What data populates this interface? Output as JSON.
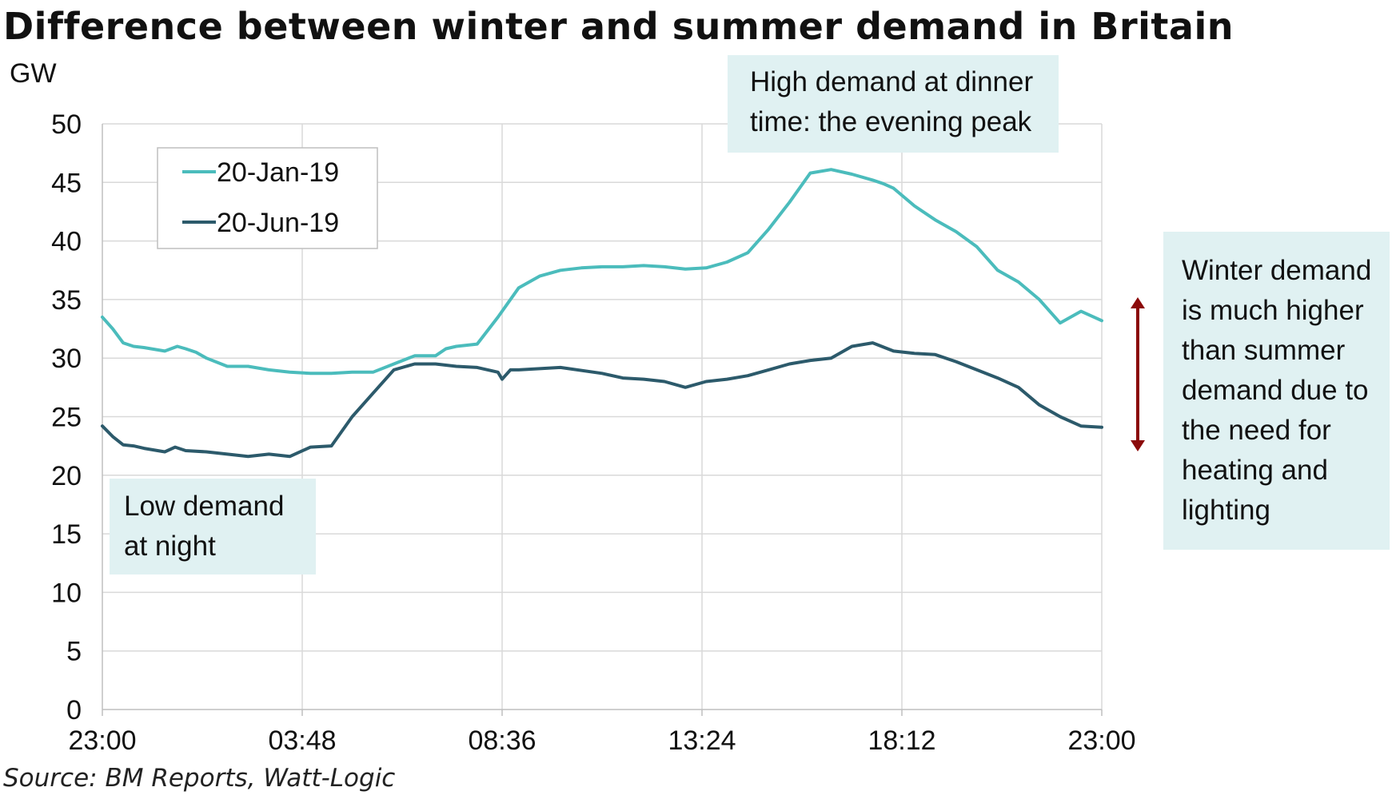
{
  "title": "Difference between winter and summer demand in Britain",
  "source": "Source: BM Reports, Watt-Logic",
  "colors": {
    "winter": "#4bbcbc",
    "summer": "#2c5a6b",
    "arrow": "#8b0a0a",
    "annotation_bg": "#e0f1f2",
    "grid": "#d9d9d9"
  },
  "chart_data": {
    "type": "line",
    "ylabel": "GW",
    "ylim": [
      0,
      50
    ],
    "yticks": [
      "0",
      "5",
      "10",
      "15",
      "20",
      "25",
      "30",
      "35",
      "40",
      "45",
      "50"
    ],
    "xticks": [
      "23:00",
      "03:48",
      "08:36",
      "13:24",
      "18:12",
      "23:00"
    ],
    "x_unit": "hours since 23:00",
    "xlim": [
      0,
      24
    ],
    "legend_position": "top-left",
    "grid": true,
    "series": [
      {
        "name": "20-Jan-19",
        "color": "#4bbcbc",
        "x": [
          0,
          0.25,
          0.5,
          0.75,
          1,
          1.5,
          1.8,
          2,
          2.25,
          2.5,
          3,
          3.5,
          4,
          4.5,
          5,
          5.5,
          6,
          6.5,
          7,
          7.5,
          8,
          8.25,
          8.5,
          9,
          9.5,
          10,
          10.5,
          11,
          11.5,
          12,
          12.5,
          13,
          13.5,
          14,
          14.5,
          15,
          15.5,
          16,
          16.5,
          17,
          17.5,
          18,
          18.5,
          18.75,
          19,
          19.5,
          20,
          20.5,
          21,
          21.5,
          22,
          22.5,
          23,
          23.5,
          24
        ],
        "y": [
          33.5,
          32.5,
          31.3,
          31.0,
          30.9,
          30.6,
          31.0,
          30.8,
          30.5,
          30.0,
          29.3,
          29.3,
          29.0,
          28.8,
          28.7,
          28.7,
          28.8,
          28.8,
          29.5,
          30.2,
          30.2,
          30.8,
          31.0,
          31.2,
          33.5,
          36.0,
          37.0,
          37.5,
          37.7,
          37.8,
          37.8,
          37.9,
          37.8,
          37.6,
          37.7,
          38.2,
          39.0,
          41.0,
          43.3,
          45.8,
          46.1,
          45.7,
          45.2,
          44.9,
          44.5,
          43.0,
          41.8,
          40.8,
          39.5,
          37.5,
          36.5,
          35.0,
          33.0,
          34.0,
          33.2
        ]
      },
      {
        "name": "20-Jun-19",
        "color": "#2c5a6b",
        "x": [
          0,
          0.25,
          0.5,
          0.75,
          1,
          1.5,
          1.75,
          2,
          2.5,
          3,
          3.5,
          4,
          4.5,
          5,
          5.5,
          6,
          6.5,
          7,
          7.5,
          8,
          8.5,
          9,
          9.5,
          9.6,
          9.8,
          10,
          11,
          12,
          12.5,
          13,
          13.5,
          14,
          14.5,
          15,
          15.5,
          16,
          16.5,
          17,
          17.5,
          18,
          18.5,
          19,
          19.5,
          20,
          20.5,
          21,
          21.5,
          22,
          22.5,
          23,
          23.5,
          24
        ],
        "y": [
          24.2,
          23.3,
          22.6,
          22.5,
          22.3,
          22.0,
          22.4,
          22.1,
          22.0,
          21.8,
          21.6,
          21.8,
          21.6,
          22.4,
          22.5,
          25.0,
          27.0,
          29.0,
          29.5,
          29.5,
          29.3,
          29.2,
          28.8,
          28.2,
          29.0,
          29.0,
          29.2,
          28.7,
          28.3,
          28.2,
          28.0,
          27.5,
          28.0,
          28.2,
          28.5,
          29.0,
          29.5,
          29.8,
          30.0,
          31.0,
          31.3,
          30.6,
          30.4,
          30.3,
          29.7,
          29.0,
          28.3,
          27.5,
          26.0,
          25.0,
          24.2,
          24.1
        ]
      }
    ]
  },
  "annotations": {
    "evening_peak": [
      "High demand at dinner",
      "time: the evening peak"
    ],
    "night": [
      "Low demand",
      "at night"
    ],
    "winter_summer": [
      "Winter demand",
      "is much higher",
      "than summer",
      "demand due to",
      "the need for",
      "heating and",
      "lighting"
    ]
  }
}
